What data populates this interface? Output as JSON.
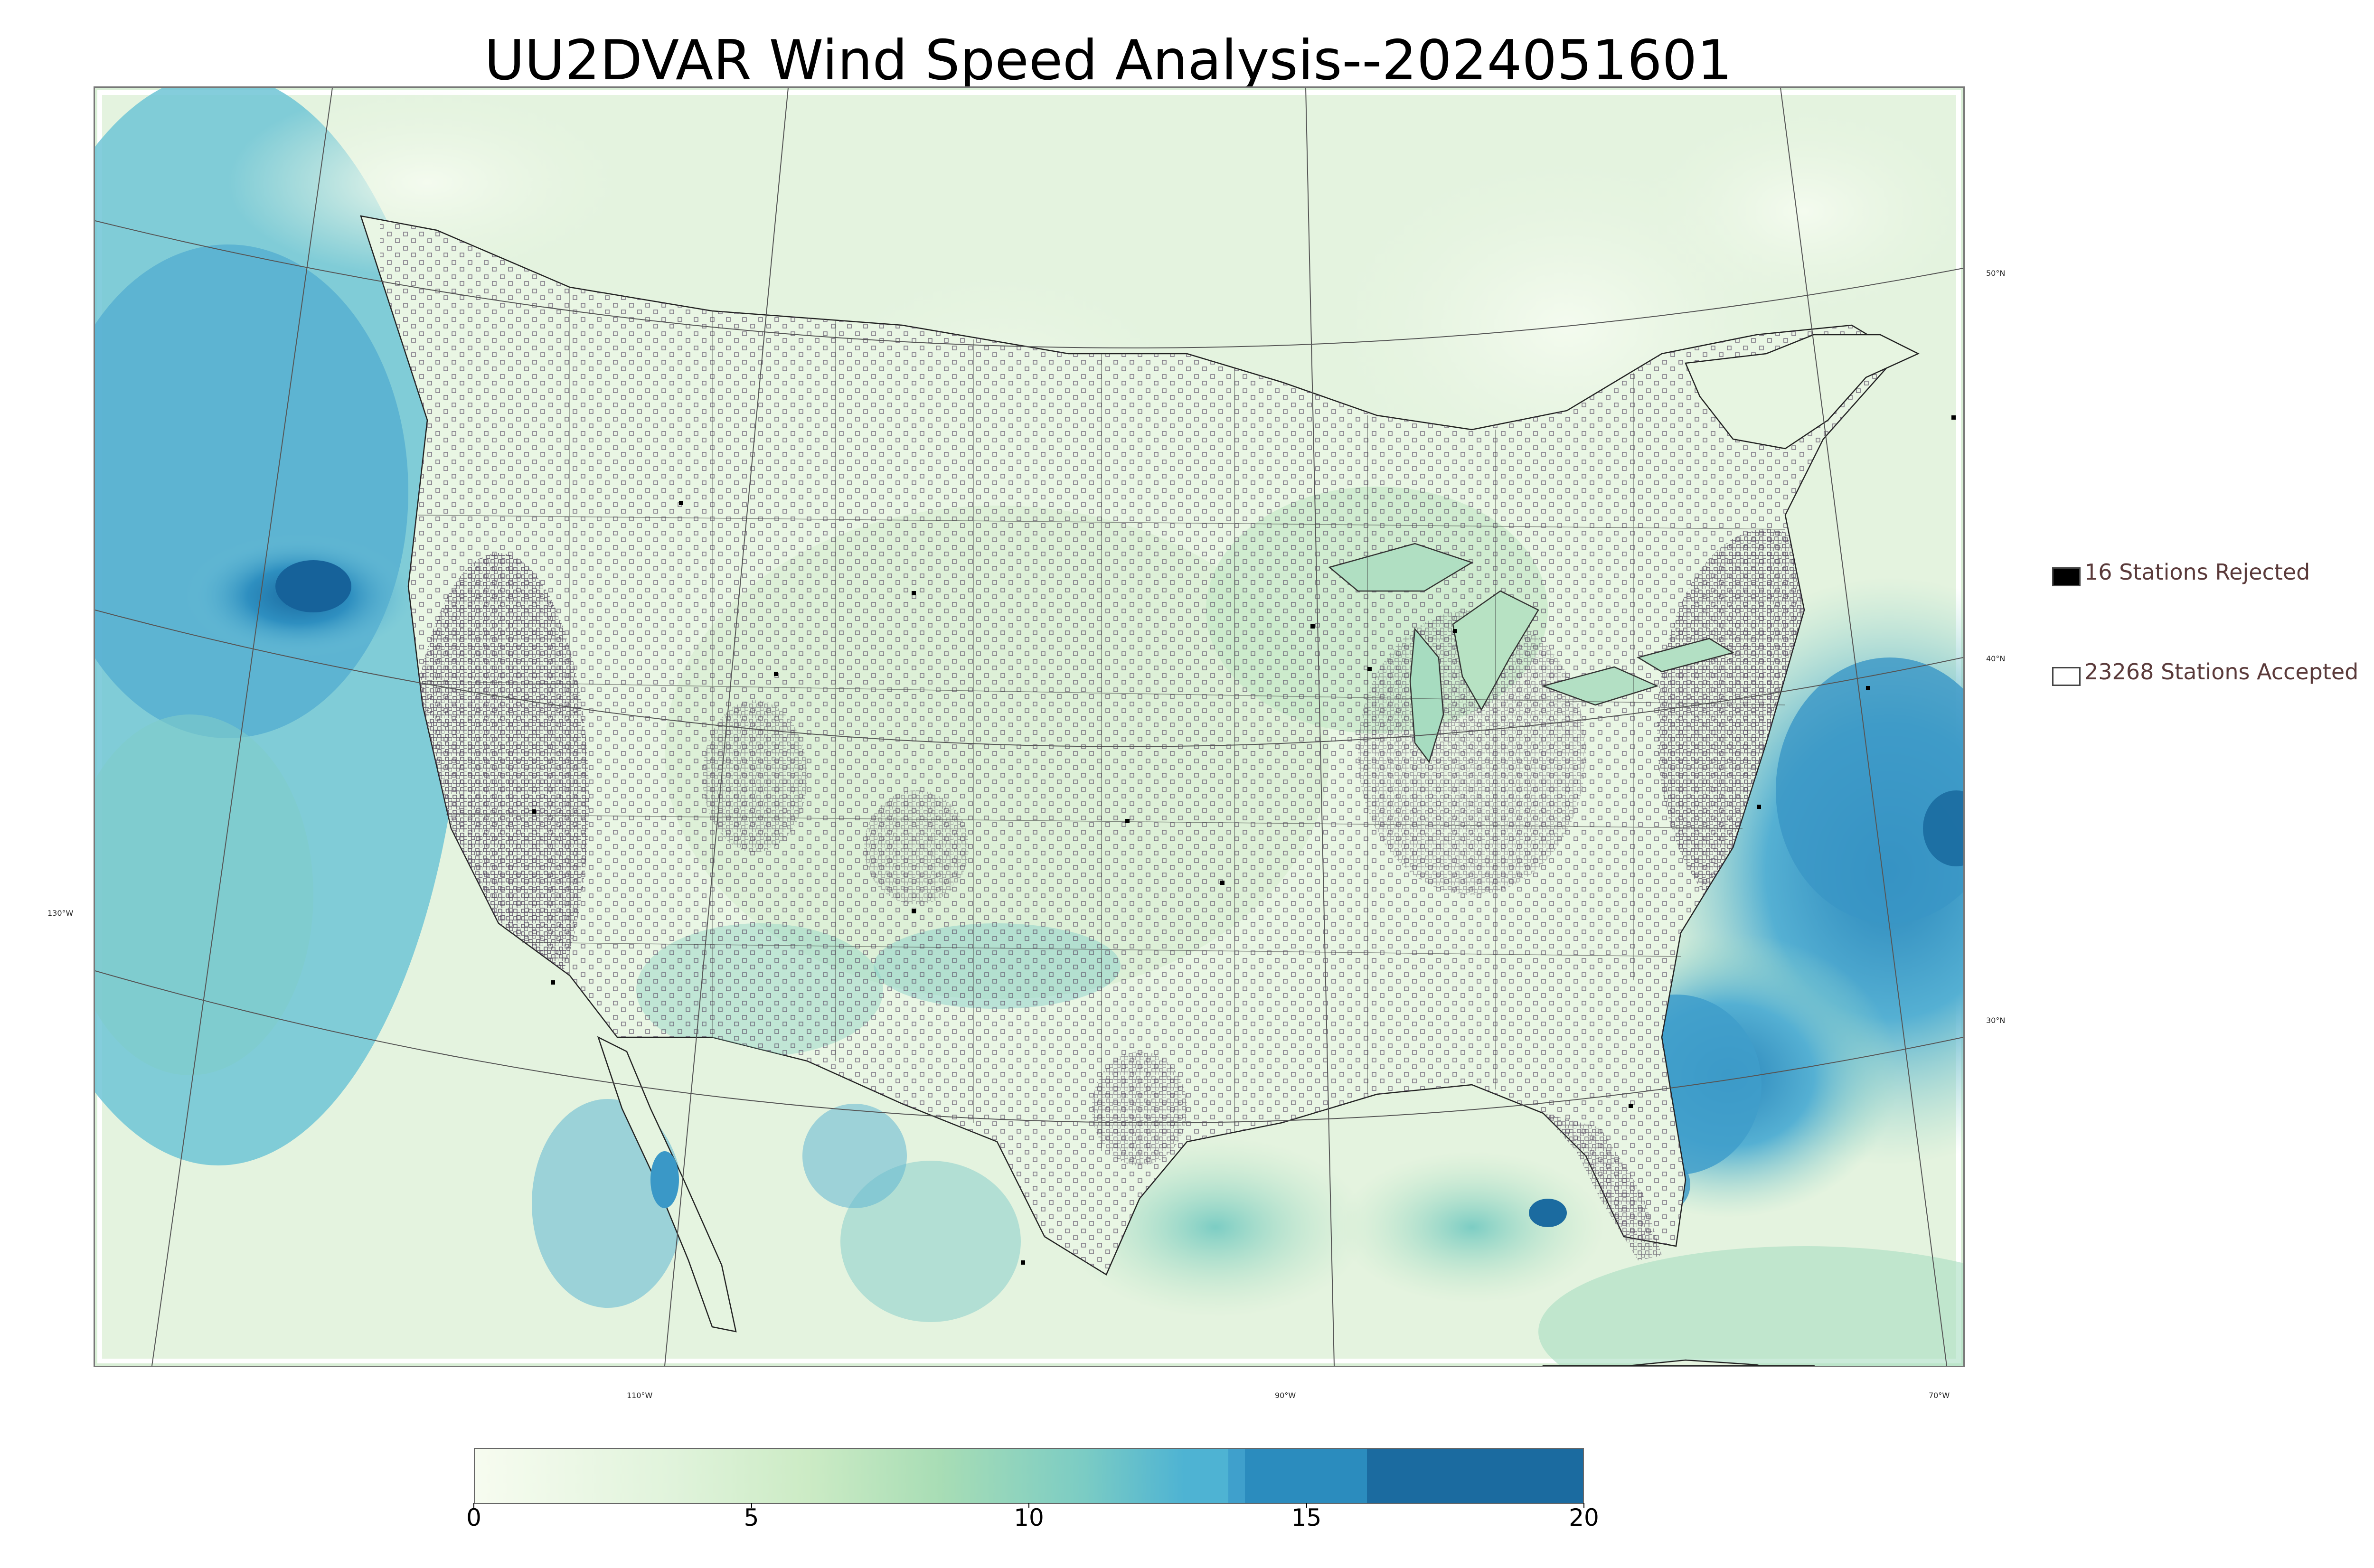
{
  "title": "UU2DVAR Wind Speed Analysis--2024051601",
  "map": {
    "ocean_strong_color": "#1c6ca3",
    "ocean_mid_color": "#4fa9d0",
    "land_light_color": "#e6f4df",
    "land_mid_color": "#b9e2c3",
    "station_marker": "open-square",
    "rejected_marker": "filled-square"
  },
  "grid_labels": {
    "lat_50": "50°N",
    "lat_40": "40°N",
    "lat_30": "30°N",
    "lon_130": "130°W",
    "lon_110": "110°W",
    "lon_90": "90°W",
    "lon_70": "70°W"
  },
  "legend": {
    "rejected_label": "16 Stations Rejected",
    "accepted_label": "23268 Stations Accepted",
    "rejected_color": "#000000",
    "accepted_color": "#ffffff"
  },
  "colorbar": {
    "min": 0,
    "max": 20,
    "ticks": [
      "0",
      "5",
      "10",
      "15",
      "20"
    ],
    "colors": [
      "#f7fcf0",
      "#e0f3db",
      "#ccebc5",
      "#a8ddb5",
      "#7bccc4",
      "#4eb3d3",
      "#2b8cbe",
      "#1b6ba0"
    ]
  }
}
